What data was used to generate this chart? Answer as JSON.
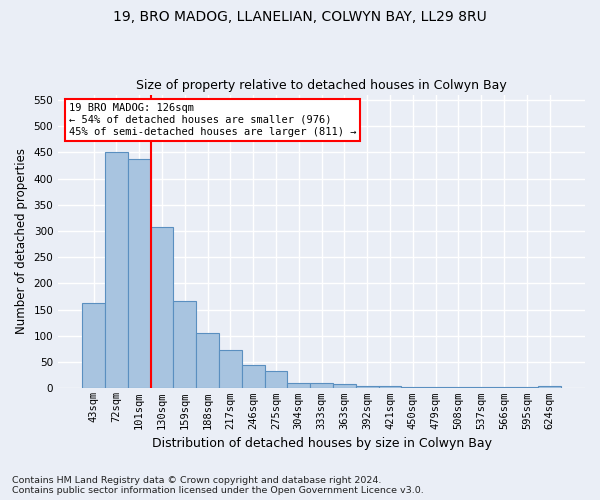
{
  "title1": "19, BRO MADOG, LLANELIAN, COLWYN BAY, LL29 8RU",
  "title2": "Size of property relative to detached houses in Colwyn Bay",
  "xlabel": "Distribution of detached houses by size in Colwyn Bay",
  "ylabel": "Number of detached properties",
  "footnote": "Contains HM Land Registry data © Crown copyright and database right 2024.\nContains public sector information licensed under the Open Government Licence v3.0.",
  "categories": [
    "43sqm",
    "72sqm",
    "101sqm",
    "130sqm",
    "159sqm",
    "188sqm",
    "217sqm",
    "246sqm",
    "275sqm",
    "304sqm",
    "333sqm",
    "363sqm",
    "392sqm",
    "421sqm",
    "450sqm",
    "479sqm",
    "508sqm",
    "537sqm",
    "566sqm",
    "595sqm",
    "624sqm"
  ],
  "values": [
    163,
    450,
    437,
    307,
    167,
    106,
    74,
    45,
    33,
    10,
    10,
    8,
    5,
    5,
    3,
    3,
    3,
    3,
    2,
    2,
    5
  ],
  "bar_color": "#a8c4e0",
  "bar_edge_color": "#5a8fc0",
  "property_line_x": 2.5,
  "property_sqm": 126,
  "annotation_text": "19 BRO MADOG: 126sqm\n← 54% of detached houses are smaller (976)\n45% of semi-detached houses are larger (811) →",
  "annotation_box_color": "white",
  "annotation_box_edge_color": "red",
  "vline_color": "red",
  "ylim": [
    0,
    560
  ],
  "yticks": [
    0,
    50,
    100,
    150,
    200,
    250,
    300,
    350,
    400,
    450,
    500,
    550
  ],
  "background_color": "#eaeef6",
  "grid_color": "#ffffff",
  "title1_fontsize": 10,
  "title2_fontsize": 9,
  "xlabel_fontsize": 9,
  "ylabel_fontsize": 8.5,
  "tick_fontsize": 7.5,
  "annotation_fontsize": 7.5,
  "footnote_fontsize": 6.8
}
